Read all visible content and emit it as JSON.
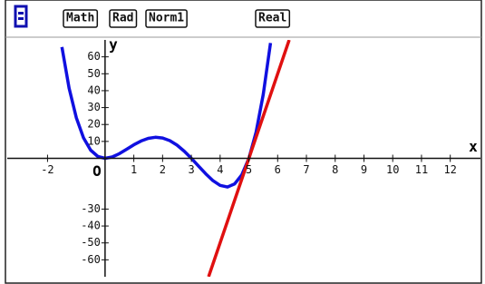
{
  "status_bar": [
    "Math",
    "Rad",
    "Norm1",
    "Real"
  ],
  "chart_data": {
    "type": "line",
    "x_label": "x",
    "y_label": "y",
    "origin_label": "O",
    "xlim": [
      -3.4,
      13.05
    ],
    "ylim": [
      -70,
      70
    ],
    "xticks": [
      -2,
      1,
      2,
      3,
      4,
      5,
      6,
      7,
      8,
      9,
      10,
      11,
      12
    ],
    "yticks": [
      60,
      50,
      40,
      30,
      20,
      10,
      -30,
      -40,
      -50,
      -60
    ],
    "series": [
      {
        "color": "#1010e0",
        "x": [
          -1.5,
          -1.25,
          -1,
          -0.75,
          -0.5,
          -0.25,
          0,
          0.25,
          0.5,
          0.75,
          1,
          1.25,
          1.5,
          1.75,
          2,
          2.25,
          2.5,
          2.75,
          3,
          3.25,
          3.5,
          3.75,
          4,
          4.25,
          4.5,
          4.75,
          5,
          5.25,
          5.5,
          5.75
        ],
        "values": [
          65.81,
          41.5,
          24,
          12.13,
          4.81,
          1.07,
          0,
          0.82,
          2.81,
          5.38,
          8,
          10.25,
          11.81,
          12.44,
          12,
          10.44,
          7.81,
          4.25,
          0,
          -4.62,
          -9.19,
          -13.18,
          -16,
          -16.93,
          -15.19,
          -9.87,
          0,
          15.5,
          37.81,
          68.19
        ]
      },
      {
        "color": "#e01010",
        "x": [
          3.6,
          6.4
        ],
        "values": [
          -70,
          70
        ]
      }
    ]
  }
}
